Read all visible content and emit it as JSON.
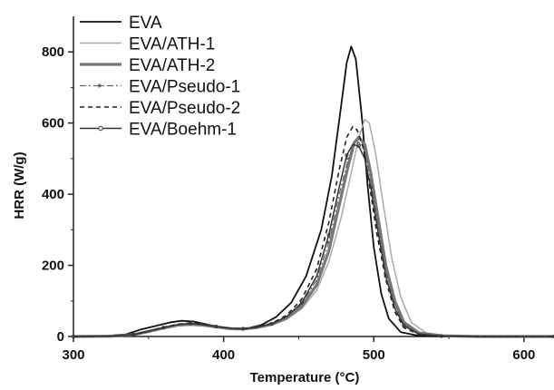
{
  "chart_data": {
    "type": "line",
    "xlabel": "Temperature (°C)",
    "ylabel": "HRR (W/g)",
    "xlim": [
      300,
      620
    ],
    "ylim": [
      0,
      900
    ],
    "x_ticks": [
      300,
      400,
      500,
      600
    ],
    "y_ticks": [
      0,
      200,
      400,
      600,
      800
    ],
    "x_tick_labels": [
      "300",
      "400",
      "500",
      "600"
    ],
    "y_tick_labels": [
      "0",
      "200",
      "400",
      "600",
      "800"
    ],
    "grid": false,
    "legend_position": "top-left",
    "series": [
      {
        "name": "EVA",
        "color": "#111111",
        "dash": "solid",
        "width": 1.8,
        "points": [
          [
            300,
            0
          ],
          [
            320,
            1
          ],
          [
            335,
            6
          ],
          [
            345,
            20
          ],
          [
            355,
            30
          ],
          [
            365,
            40
          ],
          [
            372,
            44
          ],
          [
            380,
            42
          ],
          [
            390,
            33
          ],
          [
            400,
            24
          ],
          [
            408,
            20
          ],
          [
            415,
            22
          ],
          [
            425,
            32
          ],
          [
            435,
            55
          ],
          [
            445,
            95
          ],
          [
            455,
            170
          ],
          [
            465,
            300
          ],
          [
            472,
            450
          ],
          [
            478,
            640
          ],
          [
            482,
            770
          ],
          [
            485,
            815
          ],
          [
            488,
            780
          ],
          [
            492,
            620
          ],
          [
            496,
            420
          ],
          [
            500,
            250
          ],
          [
            505,
            120
          ],
          [
            510,
            50
          ],
          [
            518,
            12
          ],
          [
            530,
            2
          ],
          [
            545,
            0
          ],
          [
            620,
            0
          ]
        ]
      },
      {
        "name": "EVA/ATH-1",
        "color": "#aaaaaa",
        "dash": "solid",
        "width": 1.5,
        "points": [
          [
            300,
            0
          ],
          [
            325,
            1
          ],
          [
            340,
            4
          ],
          [
            350,
            12
          ],
          [
            360,
            22
          ],
          [
            370,
            30
          ],
          [
            378,
            32
          ],
          [
            386,
            30
          ],
          [
            395,
            25
          ],
          [
            405,
            21
          ],
          [
            413,
            20
          ],
          [
            422,
            24
          ],
          [
            432,
            32
          ],
          [
            442,
            48
          ],
          [
            452,
            78
          ],
          [
            462,
            130
          ],
          [
            470,
            210
          ],
          [
            478,
            330
          ],
          [
            485,
            460
          ],
          [
            490,
            560
          ],
          [
            494,
            610
          ],
          [
            497,
            600
          ],
          [
            501,
            520
          ],
          [
            506,
            380
          ],
          [
            512,
            220
          ],
          [
            518,
            110
          ],
          [
            525,
            40
          ],
          [
            535,
            10
          ],
          [
            550,
            2
          ],
          [
            570,
            0
          ],
          [
            620,
            0
          ]
        ]
      },
      {
        "name": "EVA/ATH-2",
        "color": "#777777",
        "dash": "solid",
        "width": 3.2,
        "points": [
          [
            300,
            0
          ],
          [
            325,
            1
          ],
          [
            340,
            5
          ],
          [
            350,
            14
          ],
          [
            360,
            24
          ],
          [
            370,
            32
          ],
          [
            378,
            34
          ],
          [
            386,
            32
          ],
          [
            395,
            27
          ],
          [
            405,
            22
          ],
          [
            413,
            21
          ],
          [
            422,
            25
          ],
          [
            432,
            34
          ],
          [
            442,
            52
          ],
          [
            452,
            85
          ],
          [
            462,
            145
          ],
          [
            470,
            240
          ],
          [
            477,
            370
          ],
          [
            483,
            480
          ],
          [
            487,
            545
          ],
          [
            490,
            560
          ],
          [
            494,
            540
          ],
          [
            498,
            460
          ],
          [
            503,
            330
          ],
          [
            508,
            200
          ],
          [
            514,
            100
          ],
          [
            520,
            40
          ],
          [
            530,
            10
          ],
          [
            545,
            2
          ],
          [
            570,
            0
          ],
          [
            620,
            0
          ]
        ]
      },
      {
        "name": "EVA/Pseudo-1",
        "color": "#666666",
        "dash": "dashdot",
        "width": 1.2,
        "points": [
          [
            300,
            0
          ],
          [
            325,
            1
          ],
          [
            340,
            5
          ],
          [
            350,
            14
          ],
          [
            360,
            24
          ],
          [
            370,
            33
          ],
          [
            378,
            36
          ],
          [
            386,
            33
          ],
          [
            395,
            27
          ],
          [
            405,
            22
          ],
          [
            413,
            21
          ],
          [
            422,
            25
          ],
          [
            432,
            35
          ],
          [
            442,
            55
          ],
          [
            452,
            92
          ],
          [
            462,
            160
          ],
          [
            470,
            265
          ],
          [
            477,
            400
          ],
          [
            483,
            500
          ],
          [
            487,
            540
          ],
          [
            490,
            545
          ],
          [
            494,
            520
          ],
          [
            498,
            440
          ],
          [
            503,
            310
          ],
          [
            508,
            190
          ],
          [
            514,
            90
          ],
          [
            520,
            35
          ],
          [
            530,
            8
          ],
          [
            545,
            2
          ],
          [
            570,
            0
          ],
          [
            620,
            0
          ]
        ]
      },
      {
        "name": "EVA/Pseudo-2",
        "color": "#222222",
        "dash": "dashed",
        "width": 1.6,
        "points": [
          [
            300,
            0
          ],
          [
            325,
            1
          ],
          [
            340,
            5
          ],
          [
            350,
            15
          ],
          [
            360,
            26
          ],
          [
            370,
            35
          ],
          [
            378,
            38
          ],
          [
            386,
            35
          ],
          [
            395,
            28
          ],
          [
            405,
            23
          ],
          [
            413,
            22
          ],
          [
            422,
            26
          ],
          [
            432,
            37
          ],
          [
            442,
            60
          ],
          [
            452,
            105
          ],
          [
            462,
            190
          ],
          [
            470,
            320
          ],
          [
            477,
            470
          ],
          [
            482,
            560
          ],
          [
            486,
            590
          ],
          [
            489,
            580
          ],
          [
            493,
            530
          ],
          [
            497,
            430
          ],
          [
            502,
            290
          ],
          [
            508,
            160
          ],
          [
            514,
            70
          ],
          [
            520,
            25
          ],
          [
            530,
            6
          ],
          [
            545,
            1
          ],
          [
            570,
            0
          ],
          [
            620,
            0
          ]
        ]
      },
      {
        "name": "EVA/Boehm-1",
        "color": "#333333",
        "dash": "solid",
        "width": 1.5,
        "points": [
          [
            300,
            0
          ],
          [
            325,
            1
          ],
          [
            340,
            5
          ],
          [
            350,
            15
          ],
          [
            360,
            25
          ],
          [
            370,
            34
          ],
          [
            378,
            37
          ],
          [
            386,
            34
          ],
          [
            395,
            28
          ],
          [
            405,
            23
          ],
          [
            413,
            22
          ],
          [
            422,
            26
          ],
          [
            432,
            36
          ],
          [
            442,
            56
          ],
          [
            452,
            95
          ],
          [
            462,
            170
          ],
          [
            470,
            285
          ],
          [
            477,
            420
          ],
          [
            482,
            510
          ],
          [
            486,
            540
          ],
          [
            490,
            535
          ],
          [
            494,
            500
          ],
          [
            498,
            420
          ],
          [
            503,
            290
          ],
          [
            508,
            170
          ],
          [
            514,
            80
          ],
          [
            520,
            30
          ],
          [
            530,
            7
          ],
          [
            545,
            1
          ],
          [
            570,
            0
          ],
          [
            620,
            0
          ]
        ]
      }
    ]
  }
}
